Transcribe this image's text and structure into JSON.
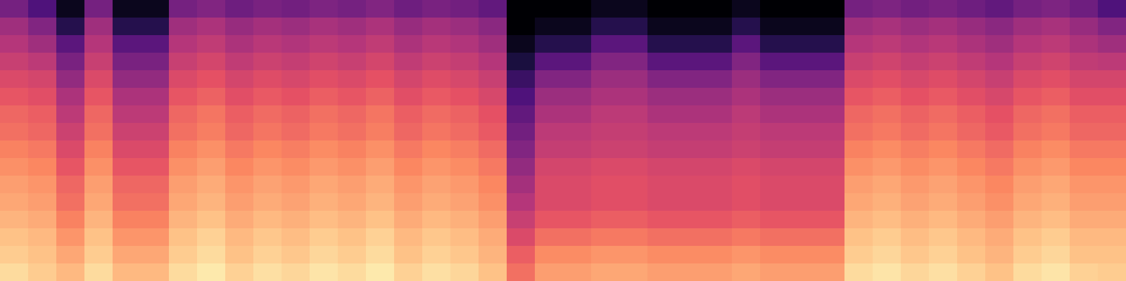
{
  "chart_data": {
    "type": "heatmap",
    "tick_labels": false,
    "zlim": [
      0,
      100
    ],
    "cells": [
      [
        35,
        25,
        5,
        35,
        5,
        5,
        35,
        38,
        33,
        36,
        34,
        37,
        35,
        38,
        33,
        36,
        34,
        30,
        0,
        0,
        0,
        5,
        5,
        0,
        0,
        0,
        5,
        0,
        0,
        0,
        35,
        37,
        34,
        36,
        33,
        30,
        35,
        37,
        33,
        25
      ],
      [
        45,
        38,
        15,
        45,
        15,
        15,
        45,
        48,
        43,
        46,
        44,
        47,
        45,
        48,
        43,
        46,
        44,
        40,
        0,
        5,
        5,
        15,
        15,
        5,
        5,
        5,
        15,
        5,
        5,
        5,
        45,
        47,
        44,
        46,
        43,
        40,
        45,
        47,
        43,
        38
      ],
      [
        50,
        45,
        28,
        50,
        28,
        28,
        50,
        53,
        48,
        51,
        49,
        52,
        50,
        53,
        48,
        51,
        49,
        45,
        5,
        15,
        15,
        28,
        28,
        15,
        15,
        15,
        28,
        15,
        15,
        15,
        50,
        52,
        49,
        51,
        48,
        45,
        50,
        52,
        48,
        45
      ],
      [
        55,
        52,
        36,
        55,
        36,
        36,
        55,
        58,
        53,
        56,
        54,
        57,
        55,
        58,
        53,
        56,
        54,
        50,
        12,
        28,
        28,
        38,
        38,
        28,
        28,
        28,
        38,
        28,
        28,
        28,
        55,
        57,
        54,
        56,
        53,
        50,
        55,
        57,
        53,
        52
      ],
      [
        60,
        58,
        42,
        60,
        42,
        42,
        60,
        63,
        58,
        61,
        59,
        62,
        60,
        63,
        58,
        61,
        59,
        55,
        20,
        38,
        38,
        44,
        44,
        38,
        38,
        38,
        44,
        38,
        38,
        38,
        60,
        62,
        59,
        61,
        58,
        55,
        60,
        62,
        58,
        58
      ],
      [
        64,
        62,
        48,
        64,
        48,
        48,
        64,
        67,
        62,
        65,
        63,
        66,
        64,
        67,
        62,
        65,
        63,
        59,
        25,
        44,
        44,
        48,
        48,
        44,
        44,
        44,
        48,
        44,
        44,
        44,
        64,
        66,
        63,
        65,
        62,
        59,
        64,
        66,
        62,
        62
      ],
      [
        68,
        66,
        52,
        68,
        52,
        52,
        68,
        71,
        66,
        69,
        67,
        70,
        68,
        71,
        66,
        69,
        67,
        63,
        30,
        48,
        48,
        52,
        52,
        48,
        48,
        48,
        52,
        48,
        48,
        48,
        68,
        70,
        67,
        69,
        66,
        63,
        68,
        70,
        66,
        66
      ],
      [
        70,
        68,
        56,
        70,
        56,
        56,
        70,
        73,
        68,
        71,
        69,
        72,
        70,
        73,
        68,
        71,
        69,
        65,
        34,
        52,
        52,
        54,
        54,
        52,
        52,
        52,
        54,
        52,
        52,
        52,
        70,
        72,
        69,
        71,
        68,
        65,
        70,
        72,
        68,
        68
      ],
      [
        74,
        72,
        60,
        74,
        60,
        60,
        74,
        77,
        72,
        75,
        73,
        76,
        74,
        77,
        72,
        75,
        73,
        69,
        38,
        54,
        54,
        56,
        56,
        54,
        54,
        54,
        56,
        54,
        54,
        54,
        74,
        76,
        73,
        75,
        72,
        69,
        74,
        76,
        72,
        72
      ],
      [
        77,
        75,
        64,
        77,
        64,
        64,
        77,
        80,
        75,
        78,
        76,
        79,
        77,
        80,
        75,
        78,
        76,
        72,
        42,
        58,
        58,
        60,
        60,
        58,
        58,
        58,
        60,
        58,
        58,
        58,
        77,
        79,
        76,
        78,
        75,
        72,
        77,
        79,
        75,
        75
      ],
      [
        80,
        78,
        68,
        80,
        68,
        68,
        80,
        83,
        78,
        81,
        79,
        82,
        80,
        83,
        78,
        81,
        79,
        75,
        46,
        60,
        60,
        62,
        62,
        60,
        60,
        60,
        62,
        60,
        60,
        60,
        80,
        82,
        79,
        81,
        78,
        75,
        80,
        82,
        78,
        78
      ],
      [
        82,
        80,
        70,
        82,
        70,
        70,
        82,
        85,
        80,
        83,
        81,
        84,
        82,
        85,
        80,
        83,
        81,
        77,
        50,
        60,
        60,
        62,
        62,
        60,
        60,
        60,
        62,
        60,
        60,
        60,
        82,
        84,
        81,
        83,
        80,
        77,
        82,
        84,
        80,
        80
      ],
      [
        85,
        83,
        74,
        85,
        74,
        74,
        85,
        88,
        83,
        86,
        84,
        87,
        85,
        88,
        83,
        86,
        84,
        80,
        55,
        64,
        64,
        66,
        66,
        64,
        64,
        64,
        66,
        64,
        64,
        64,
        85,
        87,
        84,
        86,
        83,
        80,
        85,
        87,
        83,
        83
      ],
      [
        88,
        86,
        78,
        88,
        78,
        78,
        88,
        91,
        86,
        89,
        87,
        90,
        88,
        91,
        86,
        89,
        87,
        83,
        60,
        70,
        70,
        72,
        72,
        70,
        70,
        70,
        72,
        70,
        70,
        70,
        88,
        90,
        87,
        89,
        86,
        83,
        88,
        90,
        86,
        86
      ],
      [
        90,
        88,
        82,
        90,
        82,
        82,
        90,
        93,
        88,
        91,
        89,
        92,
        90,
        93,
        88,
        91,
        89,
        85,
        66,
        76,
        76,
        78,
        78,
        76,
        76,
        76,
        78,
        76,
        76,
        76,
        90,
        92,
        89,
        91,
        88,
        85,
        90,
        92,
        88,
        88
      ],
      [
        93,
        90,
        86,
        93,
        86,
        86,
        93,
        96,
        91,
        94,
        92,
        95,
        93,
        96,
        91,
        94,
        92,
        88,
        70,
        80,
        80,
        82,
        82,
        80,
        80,
        80,
        82,
        80,
        80,
        80,
        93,
        95,
        92,
        94,
        91,
        88,
        93,
        95,
        91,
        90
      ]
    ]
  }
}
